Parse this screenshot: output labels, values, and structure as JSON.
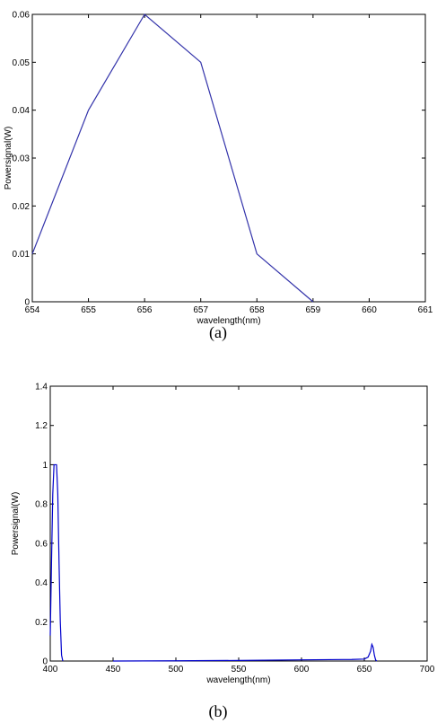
{
  "chart_data": [
    {
      "type": "line",
      "caption": "(a)",
      "xlabel": "wavelength(nm)",
      "ylabel": "Powersignal(W)",
      "xlim": [
        654,
        661
      ],
      "ylim": [
        0,
        0.06
      ],
      "xticks": [
        654,
        655,
        656,
        657,
        658,
        659,
        660,
        661
      ],
      "xtick_labels": [
        "654",
        "655",
        "656",
        "657",
        "658",
        "659",
        "660",
        "661"
      ],
      "yticks": [
        0,
        0.01,
        0.02,
        0.03,
        0.04,
        0.05,
        0.06
      ],
      "ytick_labels": [
        "0",
        "0.01",
        "0.02",
        "0.03",
        "0.04",
        "0.05",
        "0.06"
      ],
      "grid": false,
      "line_color": "#3333aa",
      "series": [
        {
          "x": [
            654,
            655,
            656,
            657,
            658,
            659
          ],
          "y": [
            0.01,
            0.04,
            0.06,
            0.05,
            0.01,
            0
          ]
        }
      ]
    },
    {
      "type": "line",
      "caption": "(b)",
      "xlabel": "wavelength(nm)",
      "ylabel": "Powersignal(W)",
      "xlim": [
        400,
        700
      ],
      "ylim": [
        0,
        1.4
      ],
      "xticks": [
        400,
        450,
        500,
        550,
        600,
        650,
        700
      ],
      "xtick_labels": [
        "400",
        "450",
        "500",
        "550",
        "600",
        "650",
        "700"
      ],
      "yticks": [
        0,
        0.2,
        0.4,
        0.6,
        0.8,
        1,
        1.2,
        1.4
      ],
      "ytick_labels": [
        "0",
        "0.2",
        "0.4",
        "0.6",
        "0.8",
        "1",
        "1.2",
        "1.4"
      ],
      "grid": false,
      "line_color": "#0000cc",
      "series": [
        {
          "x": [
            400,
            401,
            402,
            403,
            404,
            405,
            406,
            407,
            408,
            409,
            410
          ],
          "y": [
            0.13,
            0.5,
            0.85,
            1.0,
            1.0,
            1.0,
            0.85,
            0.5,
            0.2,
            0.03,
            0
          ]
        },
        {
          "x": [
            450,
            500,
            550,
            600,
            640,
            650,
            653,
            655,
            656,
            657,
            658,
            659,
            660
          ],
          "y": [
            0,
            0.001,
            0.003,
            0.006,
            0.008,
            0.01,
            0.02,
            0.05,
            0.085,
            0.07,
            0.03,
            0.005,
            0
          ]
        }
      ]
    }
  ]
}
